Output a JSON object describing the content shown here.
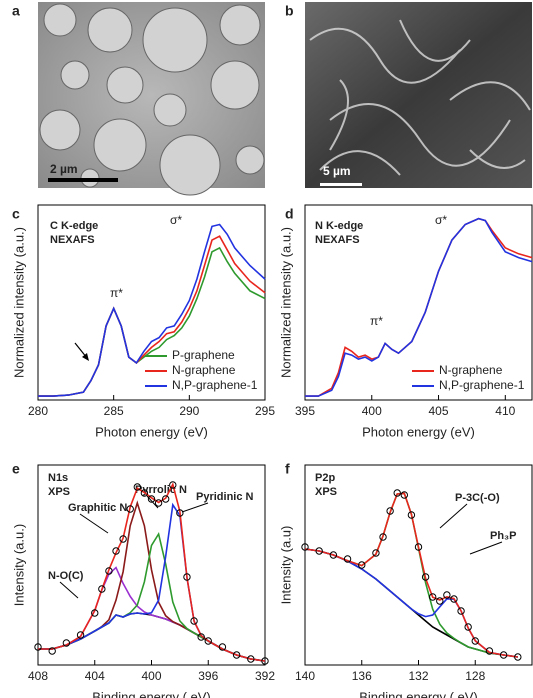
{
  "images": [
    {
      "label": "a",
      "scale_bar": "2 µm"
    },
    {
      "label": "b",
      "scale_bar": "5 µm"
    }
  ],
  "chart_data": [
    {
      "type": "line",
      "label": "c",
      "annotations": [
        "C K-edge",
        "NEXAFS",
        "σ*",
        "π*"
      ],
      "x_label": "Photon energy (eV)",
      "y_label": "Normalized intensity (a.u.)",
      "xlim": [
        280,
        295
      ],
      "xticks": [
        280,
        285,
        290,
        295
      ],
      "ylim": [
        0,
        1
      ],
      "legend": "lower right",
      "x": [
        280,
        281,
        282,
        283,
        283.5,
        284,
        284.5,
        285,
        285.5,
        286,
        286.5,
        287,
        287.5,
        288,
        288.5,
        289,
        289.5,
        290,
        290.5,
        291,
        291.5,
        292,
        292.5,
        293,
        294,
        295
      ],
      "series": [
        {
          "name": "P-graphene",
          "color": "#2e9a2e",
          "values": [
            0.02,
            0.02,
            0.025,
            0.04,
            0.1,
            0.18,
            0.38,
            0.47,
            0.38,
            0.22,
            0.19,
            0.22,
            0.25,
            0.27,
            0.31,
            0.33,
            0.37,
            0.43,
            0.52,
            0.63,
            0.76,
            0.78,
            0.71,
            0.65,
            0.56,
            0.52
          ]
        },
        {
          "name": "N-graphene",
          "color": "#e8261e",
          "values": [
            0.02,
            0.02,
            0.025,
            0.04,
            0.1,
            0.18,
            0.38,
            0.47,
            0.38,
            0.22,
            0.19,
            0.23,
            0.27,
            0.3,
            0.34,
            0.35,
            0.4,
            0.47,
            0.56,
            0.69,
            0.82,
            0.84,
            0.77,
            0.7,
            0.61,
            0.55
          ]
        },
        {
          "name": "N,P-graphene-1",
          "color": "#2233e0",
          "values": [
            0.02,
            0.02,
            0.025,
            0.04,
            0.1,
            0.18,
            0.38,
            0.47,
            0.38,
            0.22,
            0.19,
            0.25,
            0.3,
            0.32,
            0.37,
            0.38,
            0.44,
            0.51,
            0.62,
            0.76,
            0.89,
            0.9,
            0.85,
            0.78,
            0.69,
            0.62
          ]
        }
      ]
    },
    {
      "type": "line",
      "label": "d",
      "annotations": [
        "N K-edge",
        "NEXAFS",
        "σ*",
        "π*"
      ],
      "x_label": "Photon energy (eV)",
      "y_label": "Normalized intensity (a.u.)",
      "xlim": [
        395,
        412
      ],
      "xticks": [
        395,
        400,
        405,
        410
      ],
      "ylim": [
        0,
        1
      ],
      "legend": "lower right",
      "x": [
        395,
        396,
        397,
        397.5,
        398,
        398.5,
        399,
        399.5,
        400,
        400.5,
        401,
        401.5,
        402,
        403,
        404,
        405,
        406,
        407,
        408,
        408.5,
        409,
        410,
        411,
        412
      ],
      "series": [
        {
          "name": "N-graphene",
          "color": "#e8261e",
          "values": [
            0.02,
            0.02,
            0.06,
            0.14,
            0.27,
            0.25,
            0.22,
            0.23,
            0.21,
            0.22,
            0.29,
            0.26,
            0.24,
            0.3,
            0.45,
            0.66,
            0.82,
            0.9,
            0.93,
            0.92,
            0.87,
            0.78,
            0.75,
            0.73
          ]
        },
        {
          "name": "N,P-graphene-1",
          "color": "#2233e0",
          "values": [
            0.02,
            0.02,
            0.05,
            0.12,
            0.24,
            0.23,
            0.21,
            0.22,
            0.2,
            0.22,
            0.29,
            0.26,
            0.24,
            0.3,
            0.45,
            0.66,
            0.82,
            0.9,
            0.93,
            0.92,
            0.86,
            0.76,
            0.73,
            0.71
          ]
        }
      ]
    },
    {
      "type": "line",
      "label": "e",
      "annotations": [
        "N1s",
        "XPS"
      ],
      "x_label": "Binding energy ( eV)",
      "y_label": "Intensity (a.u.)",
      "xlim": [
        408,
        392
      ],
      "xticks": [
        408,
        404,
        400,
        396,
        392
      ],
      "ylim": [
        0,
        1
      ],
      "legend": "none",
      "x": [
        408,
        407,
        406,
        405,
        404,
        403.5,
        403,
        402.5,
        402,
        401.5,
        401,
        400.5,
        400,
        399.5,
        399,
        398.5,
        398,
        397.5,
        397,
        396.5,
        396,
        395,
        394,
        393,
        392
      ],
      "series": [
        {
          "color": "#000000",
          "values": [
            0.08,
            0.08,
            0.1,
            0.13,
            0.17,
            0.19,
            0.21,
            0.25,
            0.24,
            0.255,
            0.26,
            0.255,
            0.25,
            0.24,
            0.23,
            0.215,
            0.2,
            0.18,
            0.16,
            0.14,
            0.12,
            0.08,
            0.05,
            0.03,
            0.02
          ]
        },
        {
          "name": "N-O(C)",
          "color": "#9b30d0",
          "values": [
            0.08,
            0.08,
            0.1,
            0.143,
            0.273,
            0.375,
            0.454,
            0.487,
            0.408,
            0.343,
            0.294,
            0.265,
            0.25,
            0.24,
            0.23,
            0.215,
            0.2,
            0.18,
            0.16,
            0.14,
            0.12,
            0.08,
            0.05,
            0.03,
            0.02
          ]
        },
        {
          "name": "Graphitic N",
          "color": "#8b1a1a",
          "values": [
            0.08,
            0.08,
            0.1,
            0.13,
            0.17,
            0.192,
            0.226,
            0.324,
            0.466,
            0.696,
            0.81,
            0.696,
            0.476,
            0.314,
            0.246,
            0.217,
            0.2,
            0.18,
            0.16,
            0.14,
            0.12,
            0.08,
            0.05,
            0.03,
            0.02
          ]
        },
        {
          "name": "Pyrrolic N",
          "color": "#2e9a2e",
          "values": [
            0.08,
            0.08,
            0.1,
            0.13,
            0.17,
            0.19,
            0.21,
            0.25,
            0.24,
            0.261,
            0.3,
            0.416,
            0.598,
            0.655,
            0.504,
            0.315,
            0.22,
            0.182,
            0.16,
            0.14,
            0.12,
            0.08,
            0.05,
            0.03,
            0.02
          ]
        },
        {
          "name": "Pyridinic N",
          "color": "#2233e0",
          "values": [
            0.08,
            0.08,
            0.1,
            0.13,
            0.17,
            0.19,
            0.21,
            0.25,
            0.24,
            0.255,
            0.26,
            0.255,
            0.261,
            0.324,
            0.544,
            0.801,
            0.747,
            0.435,
            0.219,
            0.147,
            0.12,
            0.08,
            0.05,
            0.03,
            0.02
          ]
        },
        {
          "color": "#e8261e",
          "values": [
            0.08,
            0.08,
            0.1,
            0.143,
            0.273,
            0.377,
            0.476,
            0.561,
            0.634,
            0.79,
            0.884,
            0.862,
            0.836,
            0.813,
            0.834,
            0.903,
            0.767,
            0.437,
            0.219,
            0.147,
            0.12,
            0.08,
            0.05,
            0.03,
            0.02
          ]
        },
        {
          "color": "#000000",
          "marker": "o",
          "values": [
            0.09,
            0.07,
            0.11,
            0.15,
            0.26,
            0.38,
            0.47,
            0.57,
            0.63,
            0.78,
            0.89,
            0.86,
            0.83,
            0.81,
            0.83,
            0.9,
            0.76,
            0.44,
            0.22,
            0.14,
            0.12,
            0.09,
            0.05,
            0.03,
            0.02
          ]
        }
      ]
    },
    {
      "type": "line",
      "label": "f",
      "annotations": [
        "P2p",
        "XPS"
      ],
      "x_label": "Binding energy ( eV)",
      "y_label": "Intensity (a.u)",
      "xlim": [
        140,
        124
      ],
      "xticks": [
        140,
        136,
        132,
        128
      ],
      "ylim": [
        0,
        1
      ],
      "legend": "none",
      "x": [
        140,
        139,
        138,
        137,
        136,
        135,
        134.5,
        134,
        133.5,
        133,
        132.5,
        132,
        131.5,
        131,
        130.5,
        130,
        129.5,
        129,
        128.5,
        128,
        127,
        126,
        125
      ],
      "series": [
        {
          "color": "#000000",
          "values": [
            0.58,
            0.57,
            0.55,
            0.52,
            0.48,
            0.43,
            0.4,
            0.37,
            0.34,
            0.31,
            0.28,
            0.25,
            0.22,
            0.19,
            0.17,
            0.15,
            0.13,
            0.11,
            0.09,
            0.08,
            0.06,
            0.05,
            0.04
          ]
        },
        {
          "name": "P-3C(-O)",
          "color": "#2e9a2e",
          "values": [
            0.58,
            0.57,
            0.55,
            0.521,
            0.497,
            0.554,
            0.645,
            0.763,
            0.855,
            0.858,
            0.754,
            0.584,
            0.411,
            0.279,
            0.204,
            0.16,
            0.133,
            0.11,
            0.09,
            0.08,
            0.06,
            0.05,
            0.04
          ]
        },
        {
          "name": "Ph₃P",
          "color": "#2233e0",
          "values": [
            0.58,
            0.57,
            0.55,
            0.52,
            0.48,
            0.43,
            0.4,
            0.37,
            0.34,
            0.31,
            0.28,
            0.256,
            0.242,
            0.25,
            0.291,
            0.331,
            0.329,
            0.27,
            0.185,
            0.121,
            0.063,
            0.05,
            0.04
          ]
        },
        {
          "color": "#e8261e",
          "values": [
            0.58,
            0.57,
            0.55,
            0.521,
            0.497,
            0.554,
            0.645,
            0.763,
            0.855,
            0.858,
            0.754,
            0.59,
            0.433,
            0.339,
            0.325,
            0.341,
            0.332,
            0.27,
            0.185,
            0.121,
            0.063,
            0.05,
            0.04
          ]
        },
        {
          "color": "#000000",
          "marker": "o",
          "values": [
            0.59,
            0.57,
            0.55,
            0.53,
            0.5,
            0.56,
            0.64,
            0.77,
            0.86,
            0.85,
            0.75,
            0.59,
            0.44,
            0.34,
            0.32,
            0.35,
            0.33,
            0.27,
            0.19,
            0.12,
            0.07,
            0.05,
            0.04
          ]
        }
      ]
    }
  ]
}
